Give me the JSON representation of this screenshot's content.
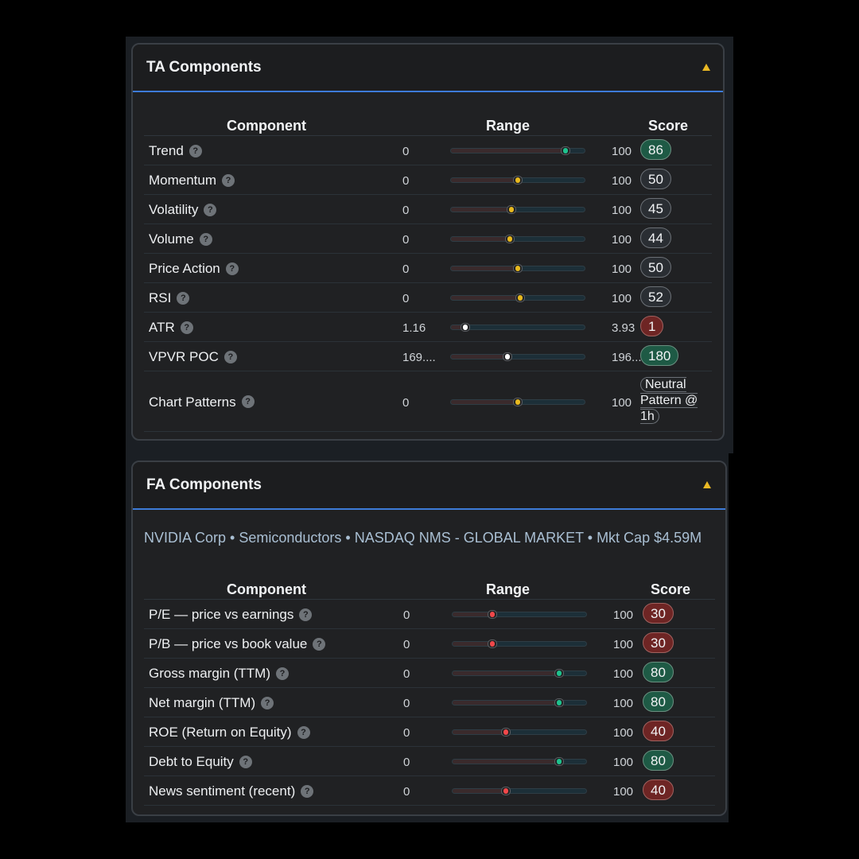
{
  "ta": {
    "title": "TA Components",
    "headers": {
      "component": "Component",
      "range": "Range",
      "score": "Score"
    },
    "rows": [
      {
        "name": "Trend",
        "min": "0",
        "max": "100",
        "position": 0.86,
        "dot": "#1fc28e",
        "score": "86",
        "tone": "green"
      },
      {
        "name": "Momentum",
        "min": "0",
        "max": "100",
        "position": 0.5,
        "dot": "#e8b91f",
        "score": "50",
        "tone": "neutral"
      },
      {
        "name": "Volatility",
        "min": "0",
        "max": "100",
        "position": 0.45,
        "dot": "#e8b91f",
        "score": "45",
        "tone": "neutral"
      },
      {
        "name": "Volume",
        "min": "0",
        "max": "100",
        "position": 0.44,
        "dot": "#e8b91f",
        "score": "44",
        "tone": "neutral"
      },
      {
        "name": "Price Action",
        "min": "0",
        "max": "100",
        "position": 0.5,
        "dot": "#e8b91f",
        "score": "50",
        "tone": "neutral"
      },
      {
        "name": "RSI",
        "min": "0",
        "max": "100",
        "position": 0.52,
        "dot": "#e8b91f",
        "score": "52",
        "tone": "neutral"
      },
      {
        "name": "ATR",
        "min": "1.16",
        "max": "3.93",
        "position": 0.11,
        "dot": "#ffffff",
        "score": "1",
        "tone": "red"
      },
      {
        "name": "VPVR POC",
        "min": "169....",
        "max": "196....",
        "position": 0.42,
        "dot": "#ffffff",
        "score": "180",
        "tone": "green"
      },
      {
        "name": "Chart Patterns",
        "min": "0",
        "max": "100",
        "position": 0.5,
        "dot": "#e8b91f",
        "score": "Neutral Pattern @ 1h",
        "tone": "pattern"
      }
    ]
  },
  "fa": {
    "title": "FA Components",
    "company_line": "NVIDIA Corp • Semiconductors • NASDAQ NMS - GLOBAL MARKET • Mkt Cap $4.59M",
    "headers": {
      "component": "Component",
      "range": "Range",
      "score": "Score"
    },
    "rows": [
      {
        "name": "P/E — price vs earnings",
        "min": "0",
        "max": "100",
        "position": 0.3,
        "dot": "#f0484a",
        "score": "30",
        "tone": "red"
      },
      {
        "name": "P/B — price vs book value",
        "min": "0",
        "max": "100",
        "position": 0.3,
        "dot": "#f0484a",
        "score": "30",
        "tone": "red"
      },
      {
        "name": "Gross margin (TTM)",
        "min": "0",
        "max": "100",
        "position": 0.8,
        "dot": "#1fc28e",
        "score": "80",
        "tone": "green"
      },
      {
        "name": "Net margin (TTM)",
        "min": "0",
        "max": "100",
        "position": 0.8,
        "dot": "#1fc28e",
        "score": "80",
        "tone": "green"
      },
      {
        "name": "ROE (Return on Equity)",
        "min": "0",
        "max": "100",
        "position": 0.4,
        "dot": "#f0484a",
        "score": "40",
        "tone": "red"
      },
      {
        "name": "Debt to Equity",
        "min": "0",
        "max": "100",
        "position": 0.8,
        "dot": "#1fc28e",
        "score": "80",
        "tone": "green"
      },
      {
        "name": "News sentiment (recent)",
        "min": "0",
        "max": "100",
        "position": 0.4,
        "dot": "#f0484a",
        "score": "40",
        "tone": "red"
      }
    ]
  },
  "icons": {
    "help": "question-circle-icon",
    "collapse": "caret-up-icon"
  },
  "colors": {
    "accent": "#3d7bd8",
    "caret": "#e9b824",
    "green": "#1fc28e",
    "yellow": "#e8b91f",
    "red": "#f0484a"
  }
}
